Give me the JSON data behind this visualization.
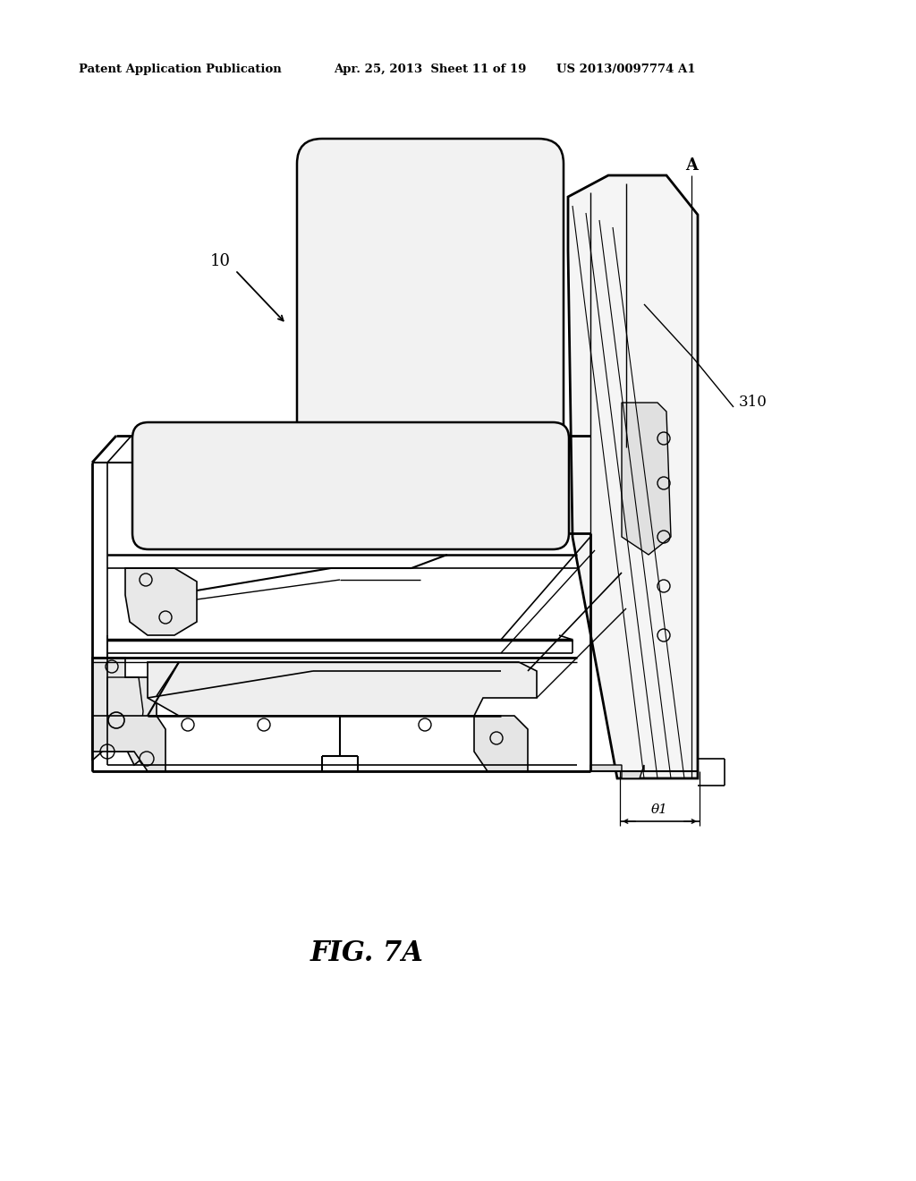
{
  "title_left": "Patent Application Publication",
  "title_mid": "Apr. 25, 2013  Sheet 11 of 19",
  "title_right": "US 2013/0097774 A1",
  "fig_label": "FIG. 7A",
  "label_10": "10",
  "label_310": "310",
  "label_A": "A",
  "label_theta": "θ1",
  "bg_color": "#ffffff",
  "line_color": "#000000"
}
